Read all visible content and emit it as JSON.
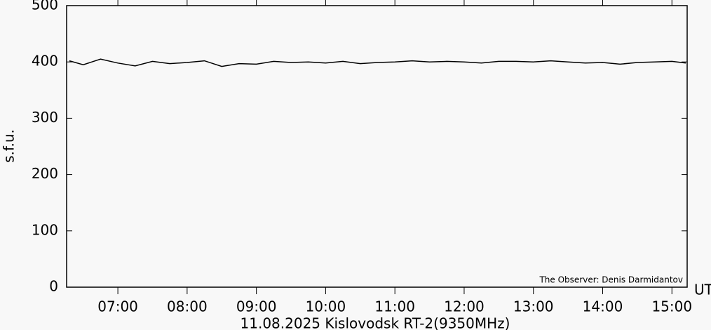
{
  "chart_data": {
    "type": "line",
    "title": "11.08.2025 Kislovodsk RT-2(9350MHz)",
    "y_label": "s.f.u.",
    "x_unit": "UT",
    "annotation": "The Observer: Denis Darmidantov",
    "x": [
      6.3,
      6.5,
      6.75,
      7,
      7.25,
      7.5,
      7.75,
      8,
      8.25,
      8.5,
      8.75,
      9,
      9.25,
      9.5,
      9.75,
      10,
      10.25,
      10.5,
      10.75,
      11,
      11.25,
      11.5,
      11.75,
      12,
      12.25,
      12.5,
      12.75,
      13,
      13.25,
      13.5,
      13.75,
      14,
      14.25,
      14.5,
      14.75,
      15,
      15.2
    ],
    "series": [
      {
        "color": "#000000",
        "values": [
          402,
          395,
          405,
          398,
          393,
          401,
          397,
          399,
          402,
          392,
          397,
          396,
          401,
          399,
          400,
          398,
          401,
          397,
          399,
          400,
          402,
          400,
          401,
          400,
          398,
          401,
          401,
          400,
          402,
          400,
          398,
          399,
          396,
          399,
          400,
          401,
          398
        ]
      }
    ],
    "xlim": [
      6.26,
      15.22
    ],
    "xticks": [
      {
        "value": 7,
        "label": "07:00"
      },
      {
        "value": 8,
        "label": "08:00"
      },
      {
        "value": 9,
        "label": "09:00"
      },
      {
        "value": 10,
        "label": "10:00"
      },
      {
        "value": 11,
        "label": "11:00"
      },
      {
        "value": 12,
        "label": "12:00"
      },
      {
        "value": 13,
        "label": "13:00"
      },
      {
        "value": 14,
        "label": "14:00"
      },
      {
        "value": 15,
        "label": "15:00"
      }
    ],
    "ylim": [
      0,
      500
    ],
    "yticks": [
      0,
      100,
      200,
      300,
      400,
      500
    ]
  }
}
